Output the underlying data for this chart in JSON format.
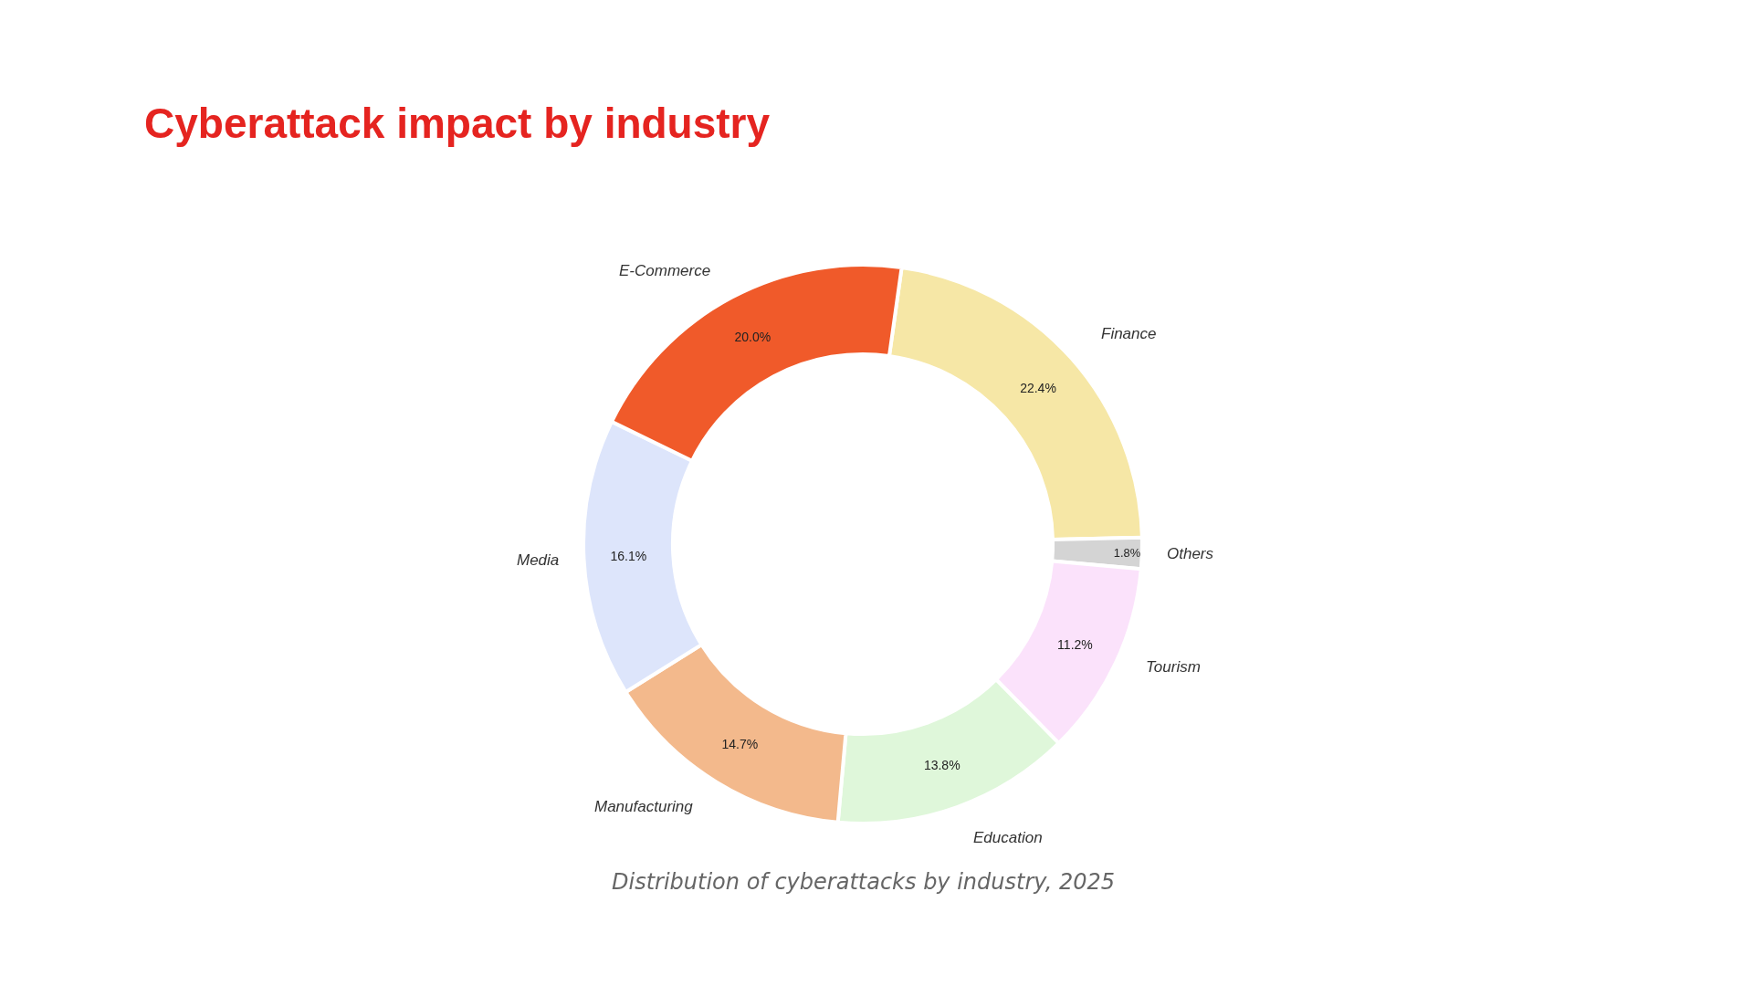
{
  "chart_data": {
    "type": "donut",
    "title": "Cyberattack impact by industry",
    "categories": [
      "Finance",
      "Others",
      "Tourism",
      "Education",
      "Manufacturing",
      "Media",
      "E-Commerce"
    ],
    "values": [
      22.4,
      1.8,
      11.2,
      13.8,
      14.7,
      16.1,
      20.0
    ],
    "value_labels": [
      "22.4%",
      "1.8%",
      "11.2%",
      "13.8%",
      "14.7%",
      "16.1%",
      "20.0%"
    ],
    "colors": [
      "#f6e7a6",
      "#d4d4d4",
      "#fbe2fb",
      "#dff7da",
      "#f3b98c",
      "#dde5fb",
      "#f05a2a"
    ],
    "annotations": [
      "Distribution of cyberattacks by industry, 2025"
    ],
    "legend": false
  }
}
